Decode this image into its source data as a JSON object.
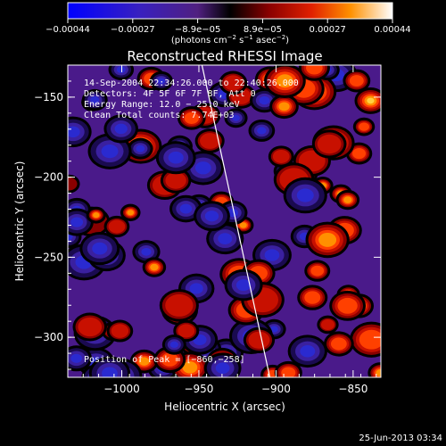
{
  "colorbar": {
    "ticks": [
      "−0.00044",
      "−0.00027",
      "−8.9e−05",
      "8.9e−05",
      "0.00027",
      "0.00044"
    ],
    "unit_prefix": "(photons cm",
    "unit_sup1": "−2",
    "unit_mid": " s",
    "unit_sup2": "−1",
    "unit_mid2": " asec",
    "unit_sup3": "−2",
    "unit_suffix": ")"
  },
  "chart_data": {
    "type": "heatmap",
    "title": "Reconstructed RHESSI Image",
    "xlabel": "Heliocentric X (arcsec)",
    "ylabel": "Heliocentric Y (arcsec)",
    "xlim": [
      -1035,
      -832
    ],
    "ylim": [
      -325,
      -130
    ],
    "xticks": [
      -1000,
      -950,
      -900,
      -850
    ],
    "xtick_labels": [
      "−1000",
      "−950",
      "−900",
      "−850"
    ],
    "yticks": [
      -300,
      -250,
      -200,
      -150
    ],
    "ytick_labels": [
      "−300",
      "−250",
      "−200",
      "−150"
    ],
    "vmin": -0.00044,
    "vmax": 0.00044,
    "limb_line": [
      [
        -948,
        -130
      ],
      [
        -904,
        -325
      ]
    ],
    "peak": [
      -860,
      -258
    ]
  },
  "annotations": {
    "time_range": "14-Sep-2004 22:34:26.000 to 22:40:26.000",
    "detectors": "Detectors: 4F 5F 6F 7F 8F, Att 0",
    "energy": "Energy Range: 12.0 − 25.0 keV",
    "clean": "Clean     Total counts: 7.74E+03",
    "peak": "Position of Peak = [−860,−258]"
  },
  "footer": {
    "date": "25-Jun-2013 03:34"
  }
}
